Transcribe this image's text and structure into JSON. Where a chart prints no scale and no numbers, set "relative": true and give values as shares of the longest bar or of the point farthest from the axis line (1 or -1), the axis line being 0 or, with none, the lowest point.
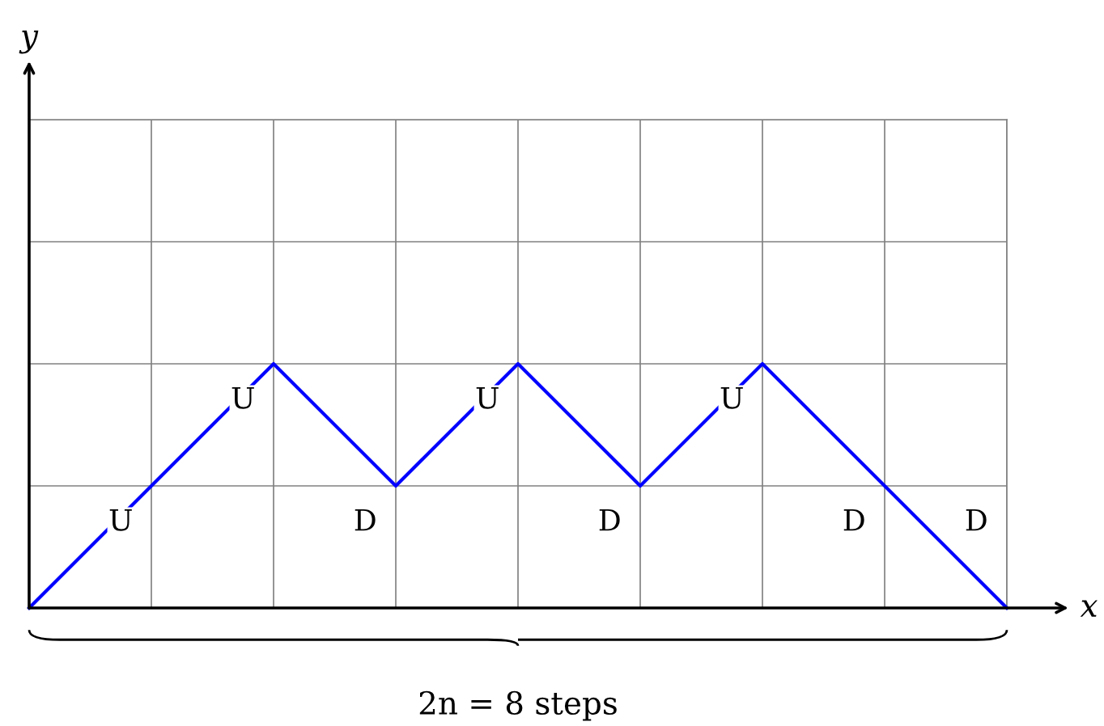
{
  "chart_data": {
    "type": "line",
    "relative": true,
    "xlabel": "x",
    "categories": [
      null,
      null,
      null,
      null,
      null,
      null,
      null,
      null,
      null
    ],
    "series": [
      {
        "color": "#0000ff",
        "values": [
          0,
          0.5,
          1,
          0.5,
          1,
          0.5,
          1,
          0.5,
          0
        ]
      }
    ],
    "marker": "none",
    "line_style": "solid",
    "grid": true,
    "annotations": [
      "U",
      "U",
      "D",
      "U",
      "D",
      "U",
      "D",
      "D",
      "2n = 8 steps",
      "y"
    ]
  }
}
